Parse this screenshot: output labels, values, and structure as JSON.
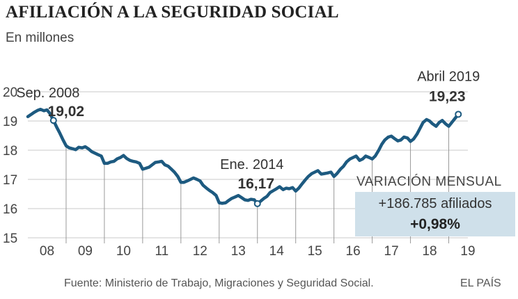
{
  "header": {
    "title": "AFILIACIÓN A LA SEGURIDAD SOCIAL",
    "subtitle": "En millones"
  },
  "chart_data": {
    "type": "line",
    "title": "AFILIACIÓN A LA SEGURIDAD SOCIAL",
    "subtitle": "En millones",
    "xlabel": "",
    "ylabel": "",
    "x_tick_labels": [
      "08",
      "09",
      "10",
      "11",
      "12",
      "13",
      "14",
      "15",
      "16",
      "17",
      "18",
      "19"
    ],
    "y_ticks": [
      15,
      16,
      17,
      18,
      19,
      20
    ],
    "ylim": [
      15,
      20
    ],
    "xlim": [
      2008.0,
      2019.5
    ],
    "grid": true,
    "series": [
      {
        "name": "",
        "color": "#1d5a80",
        "x": [
          2008.0,
          2008.08,
          2008.17,
          2008.25,
          2008.33,
          2008.42,
          2008.5,
          2008.58,
          2008.67,
          2008.75,
          2008.83,
          2008.92,
          2009.0,
          2009.08,
          2009.17,
          2009.25,
          2009.33,
          2009.42,
          2009.5,
          2009.58,
          2009.67,
          2009.75,
          2009.83,
          2009.92,
          2010.0,
          2010.08,
          2010.17,
          2010.25,
          2010.33,
          2010.42,
          2010.5,
          2010.58,
          2010.67,
          2010.75,
          2010.83,
          2010.92,
          2011.0,
          2011.08,
          2011.17,
          2011.25,
          2011.33,
          2011.42,
          2011.5,
          2011.58,
          2011.67,
          2011.75,
          2011.83,
          2011.92,
          2012.0,
          2012.08,
          2012.17,
          2012.25,
          2012.33,
          2012.42,
          2012.5,
          2012.58,
          2012.67,
          2012.75,
          2012.83,
          2012.92,
          2013.0,
          2013.08,
          2013.17,
          2013.25,
          2013.33,
          2013.42,
          2013.5,
          2013.58,
          2013.67,
          2013.75,
          2013.83,
          2013.92,
          2014.0,
          2014.08,
          2014.17,
          2014.25,
          2014.33,
          2014.42,
          2014.5,
          2014.58,
          2014.67,
          2014.75,
          2014.83,
          2014.92,
          2015.0,
          2015.08,
          2015.17,
          2015.25,
          2015.33,
          2015.42,
          2015.5,
          2015.58,
          2015.67,
          2015.75,
          2015.83,
          2015.92,
          2016.0,
          2016.08,
          2016.17,
          2016.25,
          2016.33,
          2016.42,
          2016.5,
          2016.58,
          2016.67,
          2016.75,
          2016.83,
          2016.92,
          2017.0,
          2017.08,
          2017.17,
          2017.25,
          2017.33,
          2017.42,
          2017.5,
          2017.58,
          2017.67,
          2017.75,
          2017.83,
          2017.92,
          2018.0,
          2018.08,
          2018.17,
          2018.25,
          2018.33,
          2018.42,
          2018.5,
          2018.58,
          2018.67,
          2018.75,
          2018.83,
          2018.92,
          2019.0,
          2019.08,
          2019.17,
          2019.25
        ],
        "y": [
          19.15,
          19.22,
          19.3,
          19.36,
          19.4,
          19.35,
          19.38,
          19.25,
          19.02,
          18.8,
          18.6,
          18.35,
          18.15,
          18.08,
          18.05,
          18.02,
          18.1,
          18.08,
          18.12,
          18.05,
          17.95,
          17.9,
          17.85,
          17.8,
          17.55,
          17.55,
          17.6,
          17.62,
          17.7,
          17.75,
          17.82,
          17.72,
          17.65,
          17.62,
          17.6,
          17.55,
          17.35,
          17.38,
          17.42,
          17.5,
          17.58,
          17.6,
          17.62,
          17.5,
          17.45,
          17.35,
          17.25,
          17.1,
          16.9,
          16.9,
          16.95,
          17.0,
          17.05,
          17.0,
          16.95,
          16.8,
          16.7,
          16.62,
          16.55,
          16.45,
          16.2,
          16.18,
          16.2,
          16.28,
          16.35,
          16.4,
          16.45,
          16.38,
          16.3,
          16.28,
          16.32,
          16.3,
          16.17,
          16.25,
          16.35,
          16.42,
          16.55,
          16.62,
          16.68,
          16.75,
          16.65,
          16.7,
          16.68,
          16.72,
          16.6,
          16.7,
          16.85,
          16.98,
          17.1,
          17.2,
          17.25,
          17.3,
          17.18,
          17.2,
          17.22,
          17.25,
          17.1,
          17.2,
          17.35,
          17.45,
          17.6,
          17.7,
          17.75,
          17.8,
          17.65,
          17.7,
          17.8,
          17.75,
          17.7,
          17.8,
          18.0,
          18.2,
          18.35,
          18.45,
          18.48,
          18.4,
          18.32,
          18.35,
          18.45,
          18.42,
          18.3,
          18.38,
          18.55,
          18.75,
          18.95,
          19.05,
          19.0,
          18.9,
          18.82,
          18.95,
          19.02,
          18.9,
          18.82,
          18.95,
          19.1,
          19.23
        ]
      }
    ],
    "annotations": [
      {
        "x": 2008.67,
        "y": 19.02,
        "label": "Sep. 2008",
        "value": "19,02"
      },
      {
        "x": 2014.0,
        "y": 16.17,
        "label": "Ene. 2014",
        "value": "16,17"
      },
      {
        "x": 2019.25,
        "y": 19.23,
        "label": "Abril 2019",
        "value": "19,23"
      }
    ],
    "callout": {
      "heading": "VARIACIÓN MENSUAL",
      "line1": "+186.785 afiliados",
      "line2": "+0,98%"
    }
  },
  "footer": {
    "source": "Fuente: Ministerio de Trabajo, Migraciones y Seguridad Social.",
    "brand": "EL PAÍS"
  }
}
